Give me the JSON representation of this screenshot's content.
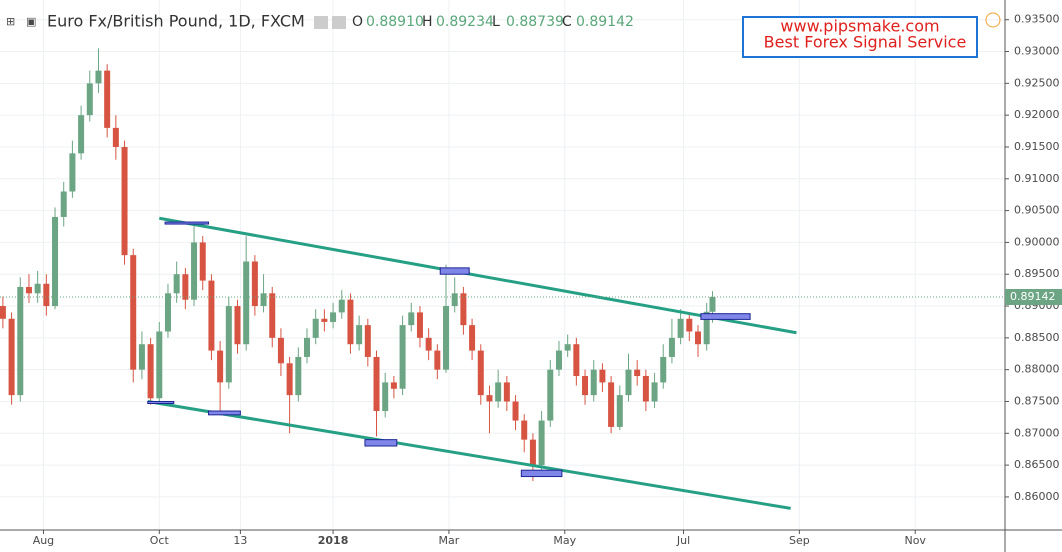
{
  "chart_data": {
    "type": "candlestick",
    "title": "Euro Fx/British Pound, 1D, FXCM",
    "ohlc_header": [
      {
        "key": "O",
        "value": "0.88910"
      },
      {
        "key": "H",
        "value": "0.89234"
      },
      {
        "key": "L",
        "value": "0.88739"
      },
      {
        "key": "C",
        "value": "0.89142"
      }
    ],
    "watermark": [
      "www.pipsmake.com",
      "Best Forex Signal Service"
    ],
    "last_price_label": "0.89142",
    "up_color": "#6ba583",
    "down_color": "#d75442",
    "trend_color": "#26a085",
    "grid": true,
    "xlim": [
      -1,
      346
    ],
    "ylim": [
      0.8548,
      0.9381
    ],
    "xticks": [
      {
        "value": 14,
        "label": "Aug"
      },
      {
        "value": 54,
        "label": "Oct"
      },
      {
        "value": 82,
        "label": "13"
      },
      {
        "value": 114,
        "label": "2018"
      },
      {
        "value": 154,
        "label": "Mar"
      },
      {
        "value": 194,
        "label": "May"
      },
      {
        "value": 235,
        "label": "Jul"
      },
      {
        "value": 275,
        "label": "Sep"
      },
      {
        "value": 315,
        "label": "Nov"
      }
    ],
    "yticks": [
      {
        "value": 0.86,
        "label": "0.86000"
      },
      {
        "value": 0.865,
        "label": "0.86500"
      },
      {
        "value": 0.87,
        "label": "0.87000"
      },
      {
        "value": 0.875,
        "label": "0.87500"
      },
      {
        "value": 0.88,
        "label": "0.88000"
      },
      {
        "value": 0.885,
        "label": "0.88500"
      },
      {
        "value": 0.89,
        "label": "0.89000"
      },
      {
        "value": 0.895,
        "label": "0.89500"
      },
      {
        "value": 0.9,
        "label": "0.90000"
      },
      {
        "value": 0.905,
        "label": "0.90500"
      },
      {
        "value": 0.91,
        "label": "0.91000"
      },
      {
        "value": 0.915,
        "label": "0.91500"
      },
      {
        "value": 0.92,
        "label": "0.92000"
      },
      {
        "value": 0.925,
        "label": "0.92500"
      },
      {
        "value": 0.93,
        "label": "0.93000"
      },
      {
        "value": 0.935,
        "label": "0.93500"
      }
    ],
    "x": [
      0,
      3,
      6,
      9,
      12,
      15,
      18,
      21,
      24,
      27,
      30,
      33,
      36,
      39,
      42,
      45,
      48,
      51,
      54,
      57,
      60,
      63,
      66,
      69,
      72,
      75,
      78,
      81,
      84,
      87,
      90,
      93,
      96,
      99,
      102,
      105,
      108,
      111,
      114,
      117,
      120,
      123,
      126,
      129,
      132,
      135,
      138,
      141,
      144,
      147,
      150,
      153,
      156,
      159,
      162,
      165,
      168,
      171,
      174,
      177,
      180,
      183,
      186,
      189,
      192,
      195,
      198,
      201,
      204,
      207,
      210,
      213,
      216,
      219,
      222,
      225,
      228,
      231,
      234,
      237,
      240,
      243,
      245
    ],
    "open": [
      0.89,
      0.888,
      0.876,
      0.893,
      0.892,
      0.8935,
      0.89,
      0.904,
      0.908,
      0.914,
      0.92,
      0.925,
      0.927,
      0.918,
      0.915,
      0.898,
      0.88,
      0.884,
      0.8755,
      0.886,
      0.892,
      0.895,
      0.891,
      0.9,
      0.894,
      0.883,
      0.878,
      0.89,
      0.884,
      0.897,
      0.89,
      0.892,
      0.885,
      0.881,
      0.876,
      0.882,
      0.885,
      0.888,
      0.8875,
      0.889,
      0.891,
      0.884,
      0.887,
      0.882,
      0.8735,
      0.878,
      0.877,
      0.887,
      0.889,
      0.885,
      0.883,
      0.88,
      0.89,
      0.892,
      0.887,
      0.883,
      0.876,
      0.875,
      0.878,
      0.875,
      0.872,
      0.869,
      0.865,
      0.872,
      0.88,
      0.883,
      0.884,
      0.879,
      0.876,
      0.88,
      0.878,
      0.871,
      0.876,
      0.88,
      0.879,
      0.875,
      0.878,
      0.882,
      0.885,
      0.888,
      0.886,
      0.884,
      0.8891
    ],
    "high": [
      0.8915,
      0.889,
      0.8945,
      0.895,
      0.8955,
      0.895,
      0.9055,
      0.9095,
      0.916,
      0.9215,
      0.927,
      0.9305,
      0.928,
      0.92,
      0.916,
      0.899,
      0.886,
      0.885,
      0.8875,
      0.8935,
      0.897,
      0.896,
      0.903,
      0.901,
      0.895,
      0.8845,
      0.8915,
      0.891,
      0.901,
      0.898,
      0.895,
      0.893,
      0.8865,
      0.882,
      0.8835,
      0.8865,
      0.8895,
      0.8895,
      0.8905,
      0.8925,
      0.892,
      0.8885,
      0.888,
      0.883,
      0.8795,
      0.879,
      0.8885,
      0.8905,
      0.89,
      0.8865,
      0.884,
      0.8965,
      0.8945,
      0.893,
      0.888,
      0.884,
      0.8775,
      0.88,
      0.879,
      0.876,
      0.873,
      0.87,
      0.8735,
      0.8815,
      0.8845,
      0.8855,
      0.885,
      0.88,
      0.8815,
      0.881,
      0.879,
      0.8775,
      0.8825,
      0.8815,
      0.88,
      0.8795,
      0.884,
      0.888,
      0.8895,
      0.889,
      0.887,
      0.8905,
      0.89234
    ],
    "low": [
      0.8865,
      0.8745,
      0.875,
      0.8905,
      0.8905,
      0.8885,
      0.8895,
      0.9025,
      0.907,
      0.913,
      0.919,
      0.9235,
      0.9165,
      0.913,
      0.8965,
      0.878,
      0.8785,
      0.8745,
      0.875,
      0.885,
      0.8905,
      0.8895,
      0.89,
      0.8925,
      0.8815,
      0.873,
      0.877,
      0.8825,
      0.883,
      0.8885,
      0.889,
      0.8835,
      0.879,
      0.87,
      0.875,
      0.881,
      0.884,
      0.886,
      0.8865,
      0.888,
      0.8825,
      0.883,
      0.8805,
      0.8695,
      0.8725,
      0.8755,
      0.876,
      0.886,
      0.8835,
      0.8815,
      0.8785,
      0.8795,
      0.889,
      0.8855,
      0.8815,
      0.8745,
      0.87,
      0.874,
      0.8735,
      0.8705,
      0.867,
      0.8625,
      0.864,
      0.871,
      0.879,
      0.882,
      0.8775,
      0.8745,
      0.875,
      0.8765,
      0.87,
      0.8705,
      0.875,
      0.8775,
      0.8735,
      0.874,
      0.877,
      0.881,
      0.884,
      0.8845,
      0.882,
      0.883,
      0.88739
    ],
    "close": [
      0.888,
      0.876,
      0.893,
      0.892,
      0.8935,
      0.89,
      0.904,
      0.908,
      0.914,
      0.92,
      0.925,
      0.927,
      0.918,
      0.915,
      0.898,
      0.88,
      0.884,
      0.8755,
      0.886,
      0.892,
      0.895,
      0.891,
      0.9,
      0.894,
      0.883,
      0.878,
      0.89,
      0.884,
      0.897,
      0.89,
      0.892,
      0.885,
      0.881,
      0.876,
      0.882,
      0.885,
      0.888,
      0.8875,
      0.889,
      0.891,
      0.884,
      0.887,
      0.882,
      0.8735,
      0.878,
      0.877,
      0.887,
      0.889,
      0.885,
      0.883,
      0.88,
      0.89,
      0.892,
      0.887,
      0.883,
      0.876,
      0.875,
      0.878,
      0.875,
      0.872,
      0.869,
      0.865,
      0.872,
      0.88,
      0.883,
      0.884,
      0.879,
      0.876,
      0.88,
      0.878,
      0.871,
      0.876,
      0.88,
      0.879,
      0.875,
      0.878,
      0.882,
      0.885,
      0.888,
      0.886,
      0.884,
      0.8891,
      0.89142
    ],
    "trendlines": [
      {
        "x": [
          54,
          274
        ],
        "y": [
          0.9038,
          0.8858
        ]
      },
      {
        "x": [
          50,
          272
        ],
        "y": [
          0.875,
          0.8582
        ]
      }
    ],
    "zones": [
      {
        "x": [
          50,
          59
        ],
        "y": [
          0.8747,
          0.875
        ]
      },
      {
        "x": [
          56,
          71
        ],
        "y": [
          0.9029,
          0.9032
        ]
      },
      {
        "x": [
          71,
          82
        ],
        "y": [
          0.8729,
          0.8735
        ]
      },
      {
        "x": [
          125,
          136
        ],
        "y": [
          0.868,
          0.869
        ]
      },
      {
        "x": [
          151,
          161
        ],
        "y": [
          0.895,
          0.896
        ]
      },
      {
        "x": [
          179,
          193
        ],
        "y": [
          0.8632,
          0.8642
        ]
      },
      {
        "x": [
          241,
          258
        ],
        "y": [
          0.8879,
          0.8888
        ]
      }
    ]
  }
}
